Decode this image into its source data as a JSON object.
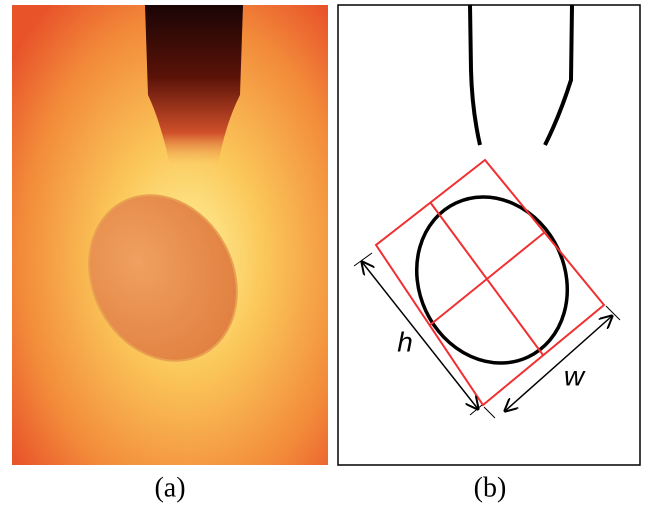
{
  "panels": [
    {
      "label": "(a)"
    },
    {
      "label": "(b)",
      "height_label": "h",
      "width_label": "w"
    }
  ]
}
